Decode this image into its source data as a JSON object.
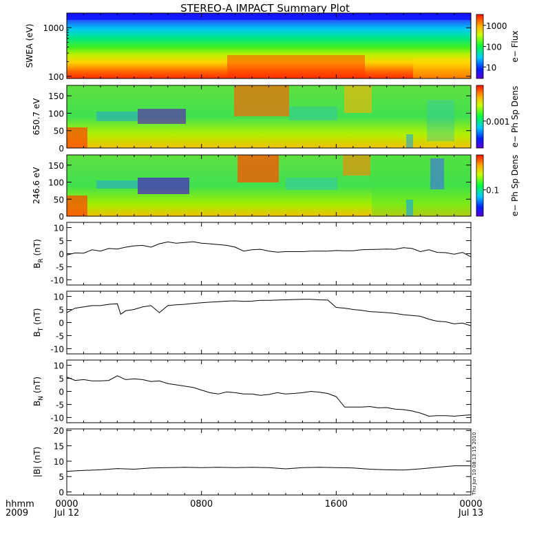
{
  "title": "STEREO-A IMPACT Summary Plot",
  "timestamp": "Thu Jun 10 08:13:15 2010",
  "x_axis": {
    "label_line1": "hhmm",
    "label_line2": "2009",
    "ticks": [
      {
        "hours": 0,
        "top": "0000",
        "bottom": "Jul 12"
      },
      {
        "hours": 8,
        "top": "0800",
        "bottom": ""
      },
      {
        "hours": 16,
        "top": "1600",
        "bottom": ""
      },
      {
        "hours": 24,
        "top": "0000",
        "bottom": "Jul 13"
      }
    ],
    "range_hours": [
      0,
      24
    ]
  },
  "chart_data": [
    {
      "type": "heatmap",
      "ylabel": "SWEA (eV)",
      "scale": "log",
      "ylim": [
        90,
        2000
      ],
      "yticks": [
        "1000",
        "100"
      ],
      "colorbar_label": "e− Flux",
      "colorbar_ticks": [
        "1000",
        "100",
        "10"
      ]
    },
    {
      "type": "heatmap",
      "ylabel": "650.7 eV",
      "ylim": [
        0,
        180
      ],
      "yticks": [
        "150",
        "100",
        "50",
        "0"
      ],
      "colorbar_label": "e− Ph Sp Dens",
      "colorbar_ticks": [
        "0.001"
      ]
    },
    {
      "type": "heatmap",
      "ylabel": "246.6 eV",
      "ylim": [
        0,
        180
      ],
      "yticks": [
        "150",
        "100",
        "50",
        "0"
      ],
      "colorbar_label": "e− Ph Sp Dens",
      "colorbar_ticks": [
        "0.1"
      ]
    },
    {
      "type": "line",
      "ylabel": "B",
      "ylabel_sub": "R",
      "ylabel_unit": " (nT)",
      "ylim": [
        -12,
        12
      ],
      "yticks": [
        "10",
        "5",
        "0",
        "-5",
        "-10"
      ],
      "x": [
        0,
        0.5,
        1,
        1.5,
        2,
        2.5,
        3,
        3.5,
        4,
        4.5,
        5,
        5.5,
        6,
        6.5,
        7,
        7.5,
        8,
        8.5,
        9,
        9.5,
        10,
        10.5,
        11,
        11.5,
        12,
        12.5,
        13,
        13.5,
        14,
        14.5,
        15,
        15.5,
        16,
        16.5,
        17,
        17.5,
        18,
        18.5,
        19,
        19.5,
        20,
        20.5,
        21,
        21.5,
        22,
        22.5,
        23,
        23.5,
        24
      ],
      "y": [
        -0.5,
        0.3,
        0.2,
        1.5,
        1,
        2,
        1.8,
        2.5,
        3,
        3.2,
        2.5,
        3.8,
        4.5,
        4,
        4.3,
        4.6,
        4,
        3.8,
        3.5,
        3.2,
        2.5,
        1,
        1.5,
        1.7,
        1,
        0.6,
        0.8,
        0.8,
        0.8,
        1,
        1,
        1,
        1.2,
        1.1,
        1.1,
        1.5,
        1.6,
        1.7,
        1.8,
        1.7,
        2.3,
        2,
        0.8,
        1.5,
        0.5,
        0.4,
        -0.2,
        0.5,
        -1.2
      ]
    },
    {
      "type": "line",
      "ylabel": "B",
      "ylabel_sub": "T",
      "ylabel_unit": " (nT)",
      "ylim": [
        -12,
        12
      ],
      "yticks": [
        "10",
        "5",
        "0",
        "-5",
        "-10"
      ],
      "x": [
        0,
        0.5,
        1,
        1.5,
        2,
        2.5,
        3,
        3.2,
        3.5,
        4,
        4.5,
        5,
        5.5,
        6,
        6.5,
        7,
        7.5,
        8,
        8.5,
        9,
        9.5,
        10,
        10.5,
        11,
        11.5,
        12,
        12.5,
        13,
        13.5,
        14,
        14.5,
        15,
        15.5,
        16,
        16.5,
        17,
        17.5,
        18,
        18.5,
        19,
        19.5,
        20,
        20.5,
        21,
        21.5,
        22,
        22.5,
        23,
        23.5,
        24
      ],
      "y": [
        3.8,
        5.5,
        6,
        6.5,
        6.5,
        7,
        7.2,
        3.2,
        4.5,
        5,
        6,
        6.5,
        3.8,
        6.5,
        6.8,
        7,
        7.3,
        7.6,
        7.8,
        8,
        8.2,
        8.3,
        8.1,
        8.2,
        8.5,
        8.5,
        8.6,
        8.7,
        8.8,
        8.9,
        8.9,
        8.7,
        8.6,
        5.8,
        5.5,
        5,
        4.7,
        4.2,
        4,
        3.8,
        3.5,
        3,
        2.7,
        2.4,
        1.3,
        0.5,
        0.3,
        -0.5,
        -0.2,
        -1.2
      ]
    },
    {
      "type": "line",
      "ylabel": "B",
      "ylabel_sub": "N",
      "ylabel_unit": " (nT)",
      "ylim": [
        -12,
        12
      ],
      "yticks": [
        "10",
        "5",
        "0",
        "-5",
        "-10"
      ],
      "x": [
        0,
        0.5,
        1,
        1.5,
        2,
        2.5,
        3,
        3.5,
        4,
        4.5,
        5,
        5.5,
        6,
        6.5,
        7,
        7.5,
        8,
        8.5,
        9,
        9.5,
        10,
        10.5,
        11,
        11.5,
        12,
        12.5,
        13,
        13.5,
        14,
        14.5,
        15,
        15.5,
        16,
        16.5,
        17,
        17.5,
        18,
        18.5,
        19,
        19.5,
        20,
        20.5,
        21,
        21.5,
        22,
        22.5,
        23,
        23.5,
        24
      ],
      "y": [
        5.5,
        4.2,
        4.5,
        4,
        4,
        4.2,
        6,
        4.5,
        4.8,
        4.5,
        3.8,
        4,
        3,
        2.5,
        2,
        1.5,
        0.5,
        -0.5,
        -1,
        -0.2,
        -0.5,
        -1,
        -1,
        -1.5,
        -1.2,
        -0.5,
        -1,
        -0.8,
        -0.5,
        0,
        -0.3,
        -0.8,
        -2,
        -6,
        -6,
        -6,
        -5.8,
        -6.3,
        -6.2,
        -6.8,
        -7,
        -7.5,
        -8.3,
        -9.5,
        -9.3,
        -9.3,
        -9.5,
        -9.2,
        -9
      ]
    },
    {
      "type": "line",
      "ylabel": "|B| (nT)",
      "ylim": [
        -1,
        20.5
      ],
      "yticks": [
        "20",
        "15",
        "10",
        "5",
        "0"
      ],
      "x": [
        0,
        1,
        2,
        3,
        4,
        5,
        6,
        7,
        8,
        9,
        10,
        11,
        12,
        13,
        14,
        15,
        16,
        17,
        18,
        19,
        20,
        21,
        22,
        23,
        24
      ],
      "y": [
        6.7,
        7,
        7.2,
        7.6,
        7.4,
        7.8,
        7.9,
        8,
        7.9,
        8,
        7.9,
        8,
        7.9,
        7.5,
        7.9,
        8,
        7.9,
        7.8,
        7.4,
        7.2,
        7.1,
        7.5,
        8,
        8.5,
        8.5
      ]
    }
  ]
}
